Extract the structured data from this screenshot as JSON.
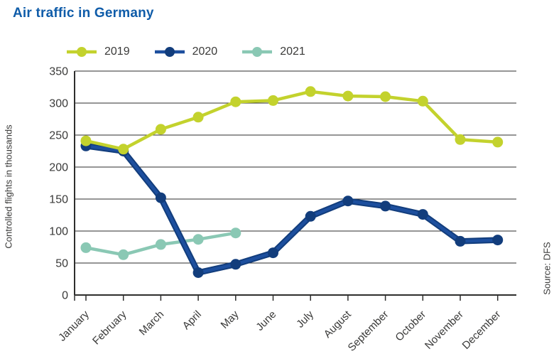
{
  "title": "Air traffic in Germany",
  "source_label": "Source: DFS",
  "colors": {
    "title": "#0f5ca9",
    "axis_text": "#3a3a39",
    "grid": "#2e2e2d"
  },
  "chart_data": {
    "type": "line",
    "title": "Air traffic in Germany",
    "ylabel": "Controlled flights in thousands",
    "xlabel": "",
    "categories": [
      "January",
      "February",
      "March",
      "April",
      "May",
      "June",
      "July",
      "August",
      "September",
      "October",
      "November",
      "December"
    ],
    "y_ticks": [
      0,
      50,
      100,
      150,
      200,
      250,
      300,
      350
    ],
    "ylim": [
      0,
      350
    ],
    "grid": true,
    "legend_position": "top",
    "source": "Source: DFS",
    "series": [
      {
        "name": "2019",
        "color": "#c3d22d",
        "values": [
          241,
          228,
          259,
          278,
          302,
          304,
          318,
          311,
          310,
          303,
          243,
          239
        ]
      },
      {
        "name": "2020",
        "color": "#1d4f9e",
        "edge_color": "#123d7c",
        "values": [
          233,
          225,
          152,
          35,
          48,
          66,
          123,
          147,
          139,
          126,
          84,
          86
        ]
      },
      {
        "name": "2021",
        "color": "#8ac8b4",
        "values": [
          74,
          63,
          79,
          87,
          97
        ]
      }
    ]
  }
}
